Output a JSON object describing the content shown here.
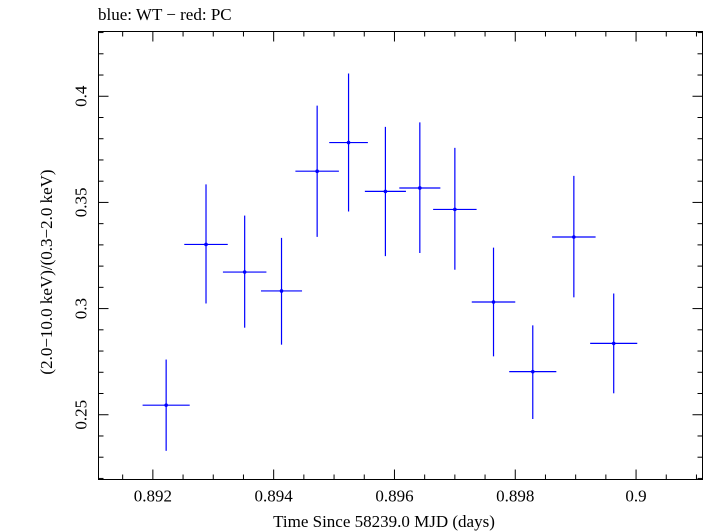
{
  "title": "blue: WT − red: PC",
  "chart_data": {
    "type": "scatter",
    "title": "blue: WT − red: PC",
    "xlabel": "Time Since 58239.0 MJD (days)",
    "ylabel": "(2.0−10.0 keV)/(0.3−2.0 keV)",
    "xlim": [
      0.8911,
      0.9011
    ],
    "ylim": [
      0.2195,
      0.4305
    ],
    "x_ticks": [
      0.892,
      0.894,
      0.896,
      0.898,
      0.9
    ],
    "x_tick_labels": [
      "0.892",
      "0.894",
      "0.896",
      "0.898",
      "0.9"
    ],
    "y_ticks": [
      0.25,
      0.3,
      0.35,
      0.4
    ],
    "y_tick_labels": [
      "0.25",
      "0.3",
      "0.35",
      "0.4"
    ],
    "grid": false,
    "series": [
      {
        "color": "#0000ff",
        "points": [
          {
            "x": 0.89222,
            "xerr": 0.00039,
            "y": 0.2545,
            "yerr_low": 0.0215,
            "yerr_high": 0.0215
          },
          {
            "x": 0.89288,
            "xerr": 0.00036,
            "y": 0.3302,
            "yerr_low": 0.0278,
            "yerr_high": 0.0283
          },
          {
            "x": 0.89352,
            "xerr": 0.00036,
            "y": 0.3172,
            "yerr_low": 0.0262,
            "yerr_high": 0.0266
          },
          {
            "x": 0.89413,
            "xerr": 0.00034,
            "y": 0.3083,
            "yerr_low": 0.0253,
            "yerr_high": 0.025
          },
          {
            "x": 0.89472,
            "xerr": 0.00036,
            "y": 0.3647,
            "yerr_low": 0.0309,
            "yerr_high": 0.0309
          },
          {
            "x": 0.89524,
            "xerr": 0.00032,
            "y": 0.3782,
            "yerr_low": 0.0325,
            "yerr_high": 0.0325
          },
          {
            "x": 0.89585,
            "xerr": 0.00034,
            "y": 0.3552,
            "yerr_low": 0.0305,
            "yerr_high": 0.0304
          },
          {
            "x": 0.89642,
            "xerr": 0.00034,
            "y": 0.3568,
            "yerr_low": 0.0306,
            "yerr_high": 0.0309
          },
          {
            "x": 0.897,
            "xerr": 0.00036,
            "y": 0.3467,
            "yerr_low": 0.0284,
            "yerr_high": 0.029
          },
          {
            "x": 0.89764,
            "xerr": 0.00036,
            "y": 0.3031,
            "yerr_low": 0.0256,
            "yerr_high": 0.0256
          },
          {
            "x": 0.89829,
            "xerr": 0.00039,
            "y": 0.2703,
            "yerr_low": 0.0223,
            "yerr_high": 0.0218
          },
          {
            "x": 0.89897,
            "xerr": 0.00036,
            "y": 0.3337,
            "yerr_low": 0.0284,
            "yerr_high": 0.0288
          },
          {
            "x": 0.89963,
            "xerr": 0.00039,
            "y": 0.2836,
            "yerr_low": 0.0235,
            "yerr_high": 0.0235
          }
        ]
      }
    ]
  }
}
